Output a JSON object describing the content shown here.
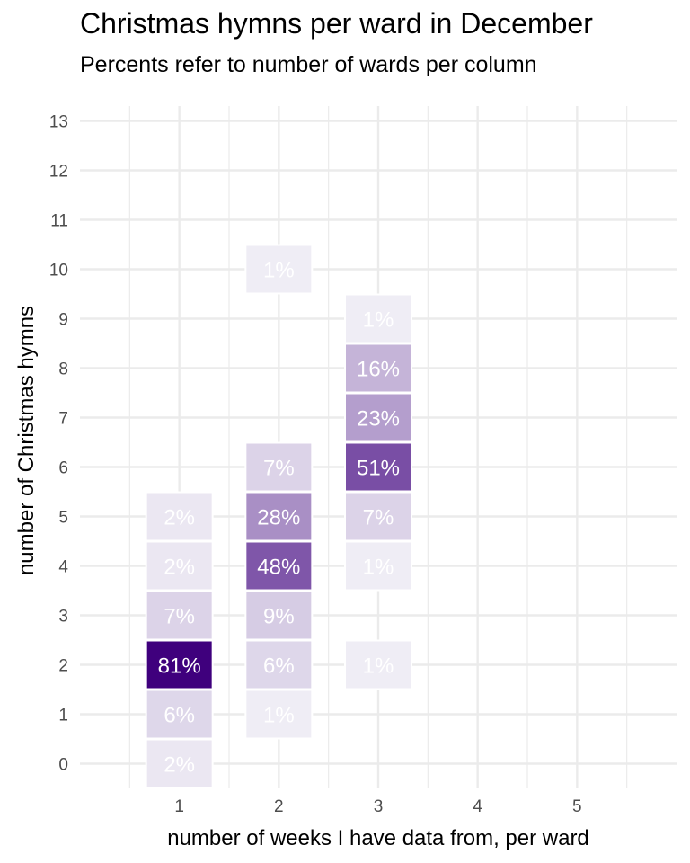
{
  "chart_data": {
    "type": "heatmap",
    "title": "Christmas hymns per ward in December",
    "subtitle": "Percents refer to number of wards per column",
    "xlabel": "number of weeks I have data from, per ward",
    "ylabel": "number of Christmas hymns",
    "x_ticks": [
      1,
      2,
      3,
      4,
      5
    ],
    "y_ticks": [
      0,
      1,
      2,
      3,
      4,
      5,
      6,
      7,
      8,
      9,
      10,
      11,
      12,
      13
    ],
    "xlim": [
      0,
      6
    ],
    "ylim": [
      -0.5,
      13.3
    ],
    "grid": true,
    "colors": {
      "low": "#efedf5",
      "high": "#3f007d",
      "grid": "#ebebeb",
      "label": "#ffffff"
    },
    "cells": [
      {
        "x": 1,
        "y": 0,
        "value": 2,
        "label": "2%"
      },
      {
        "x": 1,
        "y": 1,
        "value": 6,
        "label": "6%"
      },
      {
        "x": 1,
        "y": 2,
        "value": 81,
        "label": "81%"
      },
      {
        "x": 1,
        "y": 3,
        "value": 7,
        "label": "7%"
      },
      {
        "x": 1,
        "y": 4,
        "value": 2,
        "label": "2%"
      },
      {
        "x": 1,
        "y": 5,
        "value": 2,
        "label": "2%"
      },
      {
        "x": 2,
        "y": 1,
        "value": 1,
        "label": "1%"
      },
      {
        "x": 2,
        "y": 2,
        "value": 6,
        "label": "6%"
      },
      {
        "x": 2,
        "y": 3,
        "value": 9,
        "label": "9%"
      },
      {
        "x": 2,
        "y": 4,
        "value": 48,
        "label": "48%"
      },
      {
        "x": 2,
        "y": 5,
        "value": 28,
        "label": "28%"
      },
      {
        "x": 2,
        "y": 6,
        "value": 7,
        "label": "7%"
      },
      {
        "x": 2,
        "y": 10,
        "value": 1,
        "label": "1%"
      },
      {
        "x": 3,
        "y": 2,
        "value": 1,
        "label": "1%"
      },
      {
        "x": 3,
        "y": 4,
        "value": 1,
        "label": "1%"
      },
      {
        "x": 3,
        "y": 5,
        "value": 7,
        "label": "7%"
      },
      {
        "x": 3,
        "y": 6,
        "value": 51,
        "label": "51%"
      },
      {
        "x": 3,
        "y": 7,
        "value": 23,
        "label": "23%"
      },
      {
        "x": 3,
        "y": 8,
        "value": 16,
        "label": "16%"
      },
      {
        "x": 3,
        "y": 9,
        "value": 1,
        "label": "1%"
      }
    ]
  }
}
